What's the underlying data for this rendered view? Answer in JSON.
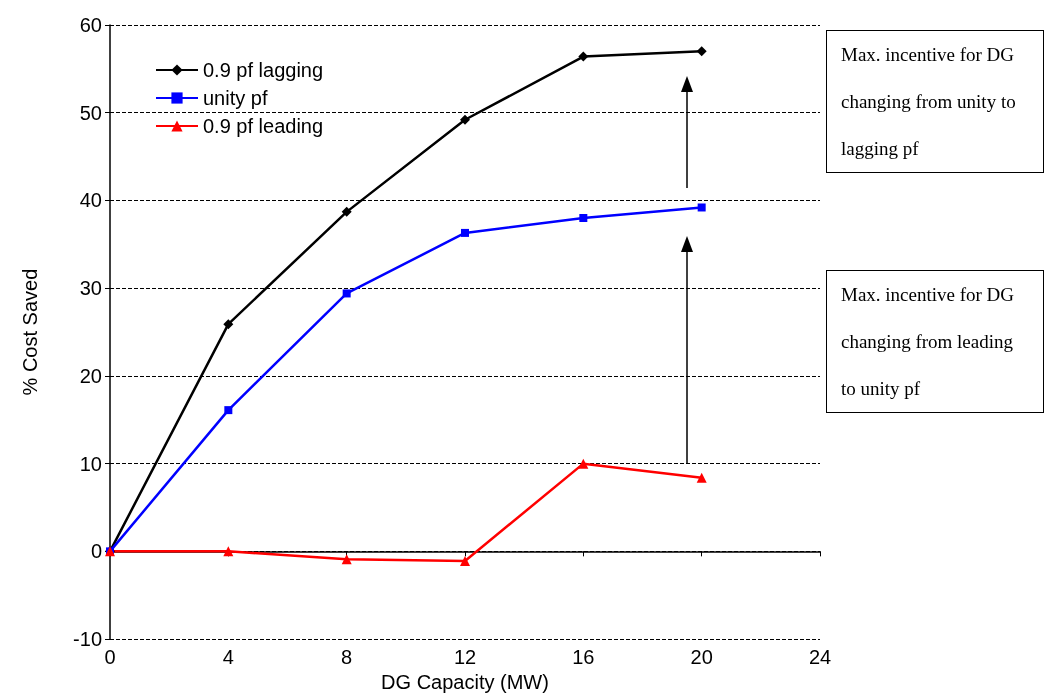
{
  "chart_data": {
    "type": "line",
    "xlabel": "DG Capacity (MW)",
    "ylabel": "% Cost Saved",
    "x": [
      0,
      4,
      8,
      12,
      16,
      20
    ],
    "series": [
      {
        "name": "0.9 pf lagging",
        "color": "#000000",
        "marker": "diamond",
        "values": [
          0,
          25.9,
          38.7,
          49.2,
          56.4,
          57.0
        ]
      },
      {
        "name": "unity pf",
        "color": "#0000ff",
        "marker": "square",
        "values": [
          0,
          16.1,
          29.4,
          36.3,
          38.0,
          39.2
        ]
      },
      {
        "name": "0.9 pf leading",
        "color": "#ff0000",
        "marker": "triangle",
        "values": [
          0,
          0,
          -0.9,
          -1.1,
          10.0,
          8.4
        ]
      }
    ],
    "xlim": [
      0,
      24
    ],
    "xticks": [
      0,
      4,
      8,
      12,
      16,
      20,
      24
    ],
    "ylim": [
      -10,
      60
    ],
    "yticks": [
      -10,
      0,
      10,
      20,
      30,
      40,
      50,
      60
    ],
    "grid": "y",
    "legend": "top left",
    "annotations": [
      "Max. incentive for DG changing from unity to lagging pf",
      "Max. incentive for DG changing from leading to unity pf"
    ]
  }
}
